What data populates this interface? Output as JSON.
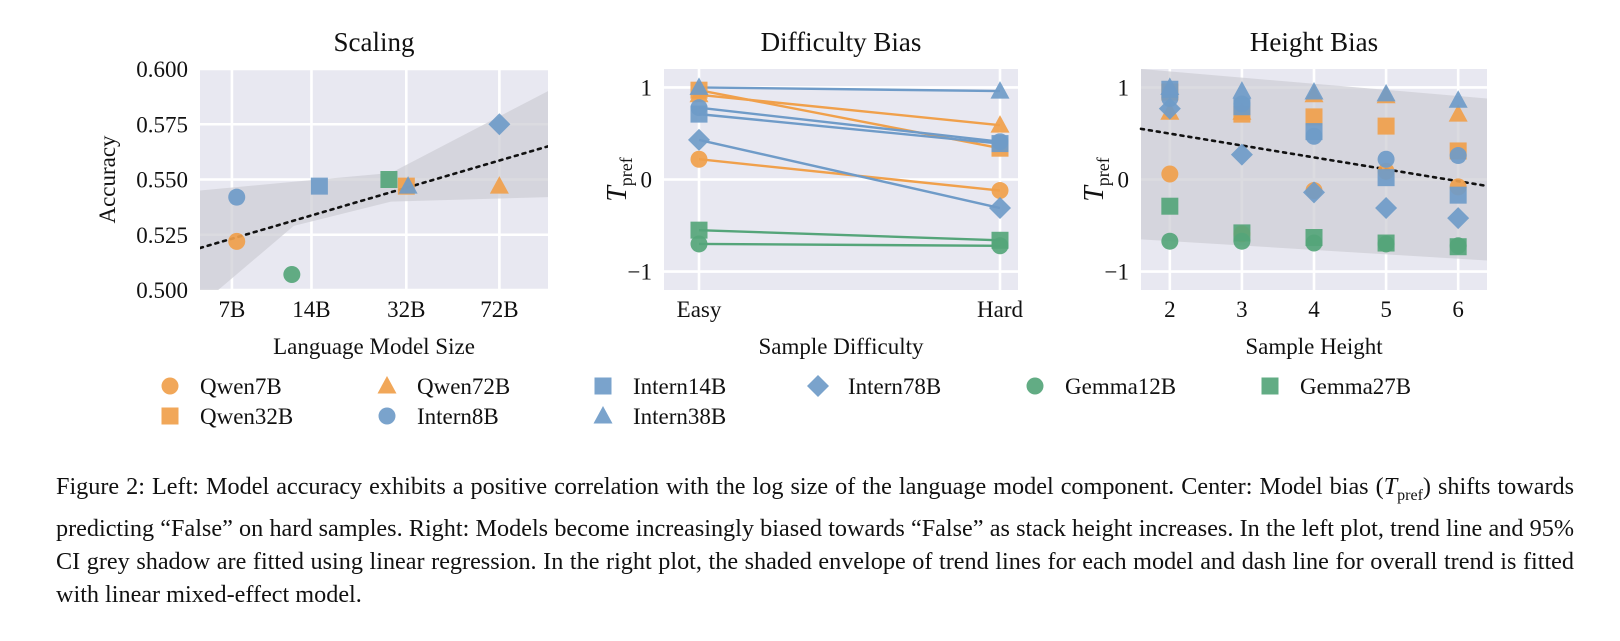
{
  "caption": {
    "part1": "Figure 2: Left: Model accuracy exhibits a positive correlation with the log size of the language model component. Center: Model bias (",
    "symbol": "T",
    "symbol_sub": "pref",
    "part2": ") shifts towards predicting “False” on hard samples. Right: Models become increasingly biased towards “False” as stack height increases. In the left plot, trend line and 95% CI grey shadow are fitted using linear regression. In the right plot, the shaded envelope of trend lines for each model and dash line for overall trend is fitted with linear mixed-effect model."
  },
  "colors": {
    "orange": "#f0a04b",
    "blue": "#6f9bc8",
    "green": "#55a57a",
    "panel": "#e8e8f1",
    "grid": "#ffffff",
    "band": "#cfcfd6"
  },
  "legend": [
    {
      "name": "Qwen7B",
      "color": "orange",
      "marker": "circle"
    },
    {
      "name": "Qwen72B",
      "color": "orange",
      "marker": "triangle"
    },
    {
      "name": "Intern14B",
      "color": "blue",
      "marker": "square"
    },
    {
      "name": "Intern78B",
      "color": "blue",
      "marker": "diamond"
    },
    {
      "name": "Gemma12B",
      "color": "green",
      "marker": "circle"
    },
    {
      "name": "Gemma27B",
      "color": "green",
      "marker": "square"
    },
    {
      "name": "Qwen32B",
      "color": "orange",
      "marker": "square"
    },
    {
      "name": "Intern8B",
      "color": "blue",
      "marker": "circle"
    },
    {
      "name": "Intern38B",
      "color": "blue",
      "marker": "triangle"
    }
  ],
  "chart_data": [
    {
      "type": "scatter",
      "title": "Scaling",
      "xlabel": "Language Model Size",
      "ylabel": "Accuracy",
      "x_scale": "log",
      "x_ticks": [
        7,
        14,
        32,
        72
      ],
      "x_tick_labels": [
        "7B",
        "14B",
        "32B",
        "72B"
      ],
      "xlim": [
        5.3,
        110
      ],
      "ylim": [
        0.5,
        0.6
      ],
      "y_ticks": [
        0.5,
        0.525,
        0.55,
        0.575,
        0.6
      ],
      "y_tick_labels": [
        "0.500",
        "0.525",
        "0.550",
        "0.575",
        "0.600"
      ],
      "grid": true,
      "points": [
        {
          "model": "Qwen7B",
          "x": 7.3,
          "y": 0.522
        },
        {
          "model": "Intern8B",
          "x": 7.3,
          "y": 0.542
        },
        {
          "model": "Gemma12B",
          "x": 11.8,
          "y": 0.507
        },
        {
          "model": "Intern14B",
          "x": 15,
          "y": 0.547
        },
        {
          "model": "Gemma27B",
          "x": 27.5,
          "y": 0.55
        },
        {
          "model": "Qwen32B",
          "x": 32,
          "y": 0.547
        },
        {
          "model": "Intern38B",
          "x": 32.5,
          "y": 0.547
        },
        {
          "model": "Intern78B",
          "x": 72,
          "y": 0.575
        },
        {
          "model": "Qwen72B",
          "x": 72,
          "y": 0.547
        }
      ],
      "trend": {
        "x": [
          5.3,
          110
        ],
        "y": [
          0.519,
          0.565
        ]
      },
      "ci_band": {
        "x": [
          5.3,
          12,
          28,
          110
        ],
        "upper": [
          0.545,
          0.549,
          0.553,
          0.59
        ],
        "lower": [
          0.493,
          0.529,
          0.54,
          0.542
        ]
      }
    },
    {
      "type": "line",
      "title": "Difficulty Bias",
      "xlabel": "Sample Difficulty",
      "ylabel_symbol": "T",
      "ylabel_sub": "pref",
      "categories": [
        "Easy",
        "Hard"
      ],
      "ylim": [
        -1.2,
        1.2
      ],
      "y_ticks": [
        -1,
        0,
        1
      ],
      "y_tick_labels": [
        "−1",
        "0",
        "1"
      ],
      "grid": true,
      "series": [
        {
          "model": "Qwen7B",
          "values": [
            0.22,
            -0.12
          ]
        },
        {
          "model": "Qwen32B",
          "values": [
            0.97,
            0.34
          ]
        },
        {
          "model": "Qwen72B",
          "values": [
            0.92,
            0.59
          ]
        },
        {
          "model": "Intern8B",
          "values": [
            0.78,
            0.41
          ]
        },
        {
          "model": "Intern14B",
          "values": [
            0.71,
            0.39
          ]
        },
        {
          "model": "Intern38B",
          "values": [
            1.0,
            0.96
          ]
        },
        {
          "model": "Intern78B",
          "values": [
            0.43,
            -0.31
          ]
        },
        {
          "model": "Gemma12B",
          "values": [
            -0.7,
            -0.72
          ]
        },
        {
          "model": "Gemma27B",
          "values": [
            -0.55,
            -0.66
          ]
        }
      ]
    },
    {
      "type": "scatter",
      "title": "Height Bias",
      "xlabel": "Sample Height",
      "ylabel_symbol": "T",
      "ylabel_sub": "pref",
      "x_ticks": [
        2,
        3,
        4,
        5,
        6
      ],
      "x_tick_labels": [
        "2",
        "3",
        "4",
        "5",
        "6"
      ],
      "xlim": [
        1.6,
        6.4
      ],
      "ylim": [
        -1.2,
        1.2
      ],
      "y_ticks": [
        -1,
        0,
        1
      ],
      "y_tick_labels": [
        "−1",
        "0",
        "1"
      ],
      "grid": true,
      "series": [
        {
          "model": "Qwen7B",
          "x": [
            2,
            3,
            4,
            5,
            6
          ],
          "y": [
            0.06,
            -0.59,
            -0.12,
            0.09,
            -0.08
          ]
        },
        {
          "model": "Qwen32B",
          "x": [
            2,
            3,
            4,
            5,
            6
          ],
          "y": [
            0.95,
            0.71,
            0.68,
            0.58,
            0.31
          ]
        },
        {
          "model": "Qwen72B",
          "x": [
            2,
            3,
            4,
            5,
            6
          ],
          "y": [
            0.73,
            0.73,
            0.92,
            0.91,
            0.71
          ]
        },
        {
          "model": "Intern8B",
          "x": [
            2,
            3,
            4,
            5,
            6
          ],
          "y": [
            0.88,
            0.82,
            0.47,
            0.22,
            0.26
          ]
        },
        {
          "model": "Intern14B",
          "x": [
            2,
            3,
            4,
            5,
            6
          ],
          "y": [
            0.98,
            0.79,
            0.52,
            0.02,
            -0.17
          ]
        },
        {
          "model": "Intern38B",
          "x": [
            2,
            3,
            4,
            5,
            6
          ],
          "y": [
            1.0,
            0.96,
            0.95,
            0.93,
            0.86
          ]
        },
        {
          "model": "Intern78B",
          "x": [
            2,
            3,
            4,
            5,
            6
          ],
          "y": [
            0.77,
            0.27,
            -0.14,
            -0.31,
            -0.42
          ]
        },
        {
          "model": "Gemma12B",
          "x": [
            2,
            3,
            4,
            5,
            6
          ],
          "y": [
            -0.67,
            -0.67,
            -0.69,
            -0.7,
            -0.72
          ]
        },
        {
          "model": "Gemma27B",
          "x": [
            2,
            3,
            4,
            5,
            6
          ],
          "y": [
            -0.29,
            -0.58,
            -0.63,
            -0.69,
            -0.73
          ]
        }
      ],
      "trend": {
        "x": [
          1.6,
          6.4
        ],
        "y": [
          0.55,
          -0.07
        ]
      },
      "envelope": {
        "x": [
          1.6,
          6.4
        ],
        "upper": [
          1.2,
          0.88
        ],
        "lower": [
          -0.65,
          -0.88
        ]
      }
    }
  ]
}
